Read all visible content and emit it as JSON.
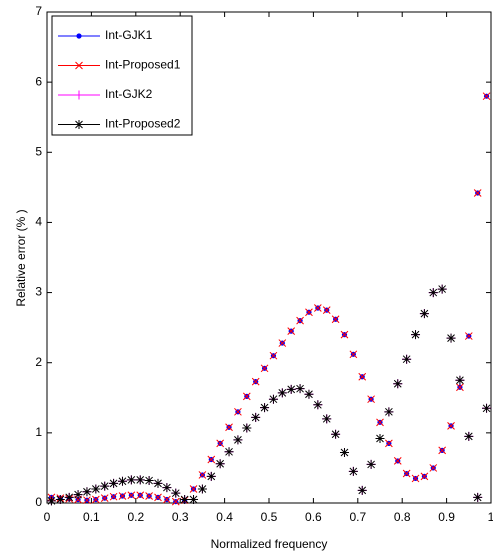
{
  "chart_data": {
    "type": "scatter",
    "xlabel": "Normalized frequency",
    "ylabel": "Relative error (% )",
    "xlim": [
      0,
      1
    ],
    "ylim": [
      0,
      7
    ],
    "xticks": [
      0,
      0.1,
      0.2,
      0.3,
      0.4,
      0.5,
      0.6,
      0.7,
      0.8,
      0.9,
      1
    ],
    "yticks": [
      0,
      1,
      2,
      3,
      4,
      5,
      6,
      7
    ],
    "legend": "upper left",
    "x": [
      0.01,
      0.03,
      0.05,
      0.07,
      0.09,
      0.11,
      0.13,
      0.15,
      0.17,
      0.19,
      0.21,
      0.23,
      0.25,
      0.27,
      0.29,
      0.31,
      0.33,
      0.35,
      0.37,
      0.39,
      0.41,
      0.43,
      0.45,
      0.47,
      0.49,
      0.51,
      0.53,
      0.55,
      0.57,
      0.59,
      0.61,
      0.63,
      0.65,
      0.67,
      0.69,
      0.71,
      0.73,
      0.75,
      0.77,
      0.79,
      0.81,
      0.83,
      0.85,
      0.87,
      0.89,
      0.91,
      0.93,
      0.95,
      0.97,
      0.99
    ],
    "series": [
      {
        "name": "Int-GJK1",
        "color": "#0000ff",
        "marker": "dot",
        "values": [
          0.08,
          0.07,
          0.06,
          0.05,
          0.04,
          0.05,
          0.07,
          0.09,
          0.1,
          0.11,
          0.11,
          0.1,
          0.08,
          0.05,
          0.02,
          0.04,
          0.2,
          0.4,
          0.62,
          0.85,
          1.08,
          1.3,
          1.52,
          1.73,
          1.92,
          2.1,
          2.28,
          2.45,
          2.6,
          2.72,
          2.78,
          2.75,
          2.62,
          2.4,
          2.12,
          1.8,
          1.48,
          1.15,
          0.85,
          0.6,
          0.42,
          0.35,
          0.38,
          0.5,
          0.75,
          1.1,
          1.65,
          2.38,
          4.42,
          5.8
        ]
      },
      {
        "name": "Int-Proposed1",
        "color": "#ff0000",
        "marker": "x",
        "values": [
          0.08,
          0.07,
          0.06,
          0.05,
          0.04,
          0.05,
          0.07,
          0.09,
          0.1,
          0.11,
          0.11,
          0.1,
          0.08,
          0.05,
          0.02,
          0.04,
          0.2,
          0.4,
          0.62,
          0.85,
          1.08,
          1.3,
          1.52,
          1.73,
          1.92,
          2.1,
          2.28,
          2.45,
          2.6,
          2.72,
          2.78,
          2.75,
          2.62,
          2.4,
          2.12,
          1.8,
          1.48,
          1.15,
          0.85,
          0.6,
          0.42,
          0.35,
          0.38,
          0.5,
          0.75,
          1.1,
          1.65,
          2.38,
          4.42,
          5.8
        ]
      },
      {
        "name": "Int-GJK2",
        "color": "#ff00ff",
        "marker": "plus",
        "values": [
          0.03,
          0.05,
          0.08,
          0.12,
          0.16,
          0.2,
          0.24,
          0.28,
          0.31,
          0.33,
          0.33,
          0.32,
          0.28,
          0.22,
          0.14,
          0.05,
          0.05,
          0.2,
          0.38,
          0.56,
          0.73,
          0.9,
          1.07,
          1.22,
          1.36,
          1.48,
          1.57,
          1.62,
          1.63,
          1.55,
          1.4,
          1.2,
          0.98,
          0.72,
          0.45,
          0.18,
          0.55,
          0.92,
          1.3,
          1.7,
          2.05,
          2.4,
          2.7,
          3.0,
          3.05,
          2.35,
          1.75,
          0.95,
          0.08,
          1.35
        ]
      },
      {
        "name": "Int-Proposed2",
        "color": "#000000",
        "marker": "star",
        "values": [
          0.03,
          0.05,
          0.08,
          0.12,
          0.16,
          0.2,
          0.24,
          0.28,
          0.31,
          0.33,
          0.33,
          0.32,
          0.28,
          0.22,
          0.14,
          0.05,
          0.05,
          0.2,
          0.38,
          0.56,
          0.73,
          0.9,
          1.07,
          1.22,
          1.36,
          1.48,
          1.57,
          1.62,
          1.63,
          1.55,
          1.4,
          1.2,
          0.98,
          0.72,
          0.45,
          0.18,
          0.55,
          0.92,
          1.3,
          1.7,
          2.05,
          2.4,
          2.7,
          3.0,
          3.05,
          2.35,
          1.75,
          0.95,
          0.08,
          1.35
        ]
      }
    ]
  }
}
